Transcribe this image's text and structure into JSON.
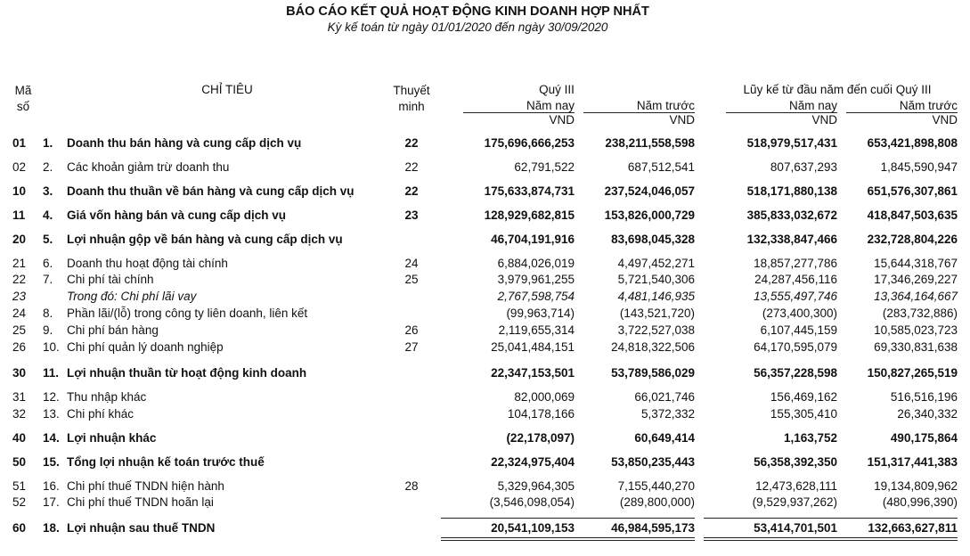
{
  "header": {
    "title": "BÁO CÁO KẾT QUẢ HOẠT ĐỘNG KINH DOANH HỢP NHẤT",
    "subtitle": "Kỳ kế toán từ ngày 01/01/2020 đến ngày 30/09/2020"
  },
  "table": {
    "columns": {
      "code": "Mã số",
      "item": "CHỈ TIÊU",
      "note": "Thuyết minh",
      "groups": [
        {
          "label": "Quý III",
          "sub": [
            "Năm nay",
            "Năm trước"
          ]
        },
        {
          "label": "Lũy kế từ đầu năm đến cuối Quý III",
          "sub": [
            "Năm nay",
            "Năm trước"
          ]
        }
      ],
      "unit": "VND"
    },
    "rows": [
      {
        "code": "01",
        "no": "1.",
        "name": "Doanh thu bán hàng và cung cấp dịch vụ",
        "note": "22",
        "style": "bold",
        "values": [
          "175,696,666,253",
          "238,211,558,598",
          "518,979,517,431",
          "653,421,898,808"
        ]
      },
      {
        "code": "02",
        "no": "2.",
        "name": "Các khoản giảm trừ doanh thu",
        "note": "22",
        "values": [
          "62,791,522",
          "687,512,541",
          "807,637,293",
          "1,845,590,947"
        ]
      },
      {
        "code": "10",
        "no": "3.",
        "name": "Doanh thu thuần về bán hàng và cung cấp dịch vụ",
        "note": "22",
        "style": "bold",
        "values": [
          "175,633,874,731",
          "237,524,046,057",
          "518,171,880,138",
          "651,576,307,861"
        ]
      },
      {
        "code": "11",
        "no": "4.",
        "name": "Giá vốn hàng bán và cung cấp dịch vụ",
        "note": "23",
        "style": "bold",
        "values": [
          "128,929,682,815",
          "153,826,000,729",
          "385,833,032,672",
          "418,847,503,635"
        ]
      },
      {
        "code": "20",
        "no": "5.",
        "name": "Lợi nhuận gộp về bán hàng và cung cấp dịch vụ",
        "style": "bold",
        "values": [
          "46,704,191,916",
          "83,698,045,328",
          "132,338,847,466",
          "232,728,804,226"
        ]
      },
      {
        "code": "21",
        "no": "6.",
        "name": "Doanh thu hoạt động tài chính",
        "note": "24",
        "values": [
          "6,884,026,019",
          "4,497,452,271",
          "18,857,277,786",
          "15,644,318,767"
        ]
      },
      {
        "code": "22",
        "no": "7.",
        "name": "Chi phí tài chính",
        "note": "25",
        "values": [
          "3,979,961,255",
          "5,721,540,306",
          "24,287,456,116",
          "17,346,269,227"
        ]
      },
      {
        "code": "23",
        "name": "Trong đó: Chi phí lãi vay",
        "style": "italic",
        "values": [
          "2,767,598,754",
          "4,481,146,935",
          "13,555,497,746",
          "13,364,164,667"
        ]
      },
      {
        "code": "24",
        "no": "8.",
        "name": "Phần lãi/(lỗ) trong công ty liên doanh, liên kết",
        "values": [
          "(99,963,714)",
          "(143,521,720)",
          "(273,400,300)",
          "(283,732,886)"
        ]
      },
      {
        "code": "25",
        "no": "9.",
        "name": "Chi phí bán hàng",
        "note": "26",
        "values": [
          "2,119,655,314",
          "3,722,527,038",
          "6,107,445,159",
          "10,585,023,723"
        ]
      },
      {
        "code": "26",
        "no": "10.",
        "name": "Chi phí quản lý doanh nghiệp",
        "note": "27",
        "values": [
          "25,041,484,151",
          "24,818,322,506",
          "64,170,595,079",
          "69,330,831,638"
        ]
      },
      {
        "code": "30",
        "no": "11.",
        "name": "Lợi nhuận thuần từ hoạt động kinh doanh",
        "style": "bold",
        "values": [
          "22,347,153,501",
          "53,789,586,029",
          "56,357,228,598",
          "150,827,265,519"
        ]
      },
      {
        "code": "31",
        "no": "12.",
        "name": "Thu nhập khác",
        "values": [
          "82,000,069",
          "66,021,746",
          "156,469,162",
          "516,516,196"
        ]
      },
      {
        "code": "32",
        "no": "13.",
        "name": "Chi phí khác",
        "values": [
          "104,178,166",
          "5,372,332",
          "155,305,410",
          "26,340,332"
        ]
      },
      {
        "code": "40",
        "no": "14.",
        "name": "Lợi nhuận khác",
        "style": "bold",
        "values": [
          "(22,178,097)",
          "60,649,414",
          "1,163,752",
          "490,175,864"
        ]
      },
      {
        "code": "50",
        "no": "15.",
        "name": "Tổng lợi nhuận kế toán trước thuế",
        "style": "bold",
        "values": [
          "22,324,975,404",
          "53,850,235,443",
          "56,358,392,350",
          "151,317,441,383"
        ]
      },
      {
        "code": "51",
        "no": "16.",
        "name": "Chi phí thuế TNDN hiện hành",
        "note": "28",
        "values": [
          "5,329,964,305",
          "7,155,440,270",
          "12,473,628,111",
          "19,134,809,962"
        ]
      },
      {
        "code": "52",
        "no": "17.",
        "name": "Chi phí thuế TNDN hoãn lại",
        "values": [
          "(3,546,098,054)",
          "(289,800,000)",
          "(9,529,937,262)",
          "(480,996,390)"
        ]
      },
      {
        "code": "60",
        "no": "18.",
        "name": "Lợi nhuận sau thuế TNDN",
        "style": "bold",
        "values": [
          "20,541,109,153",
          "46,984,595,173",
          "53,414,701,501",
          "132,663,627,811"
        ]
      }
    ]
  }
}
